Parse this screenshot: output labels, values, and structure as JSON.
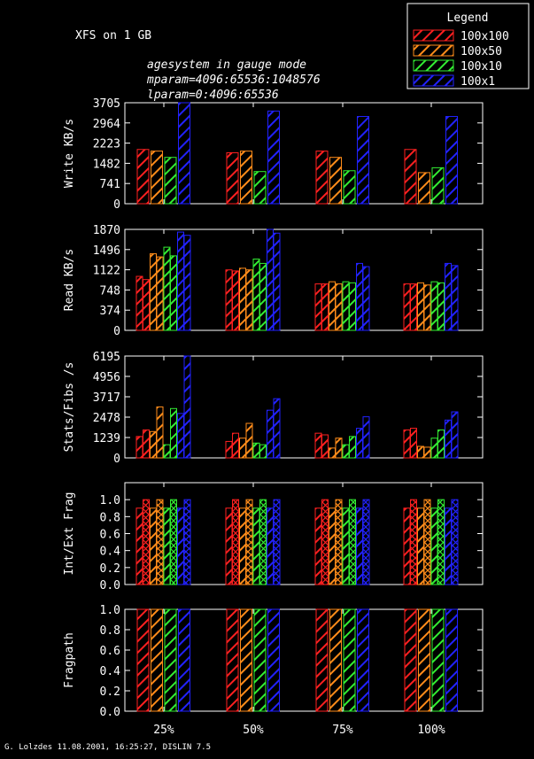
{
  "chart_data": {
    "type": "bar",
    "title": "XFS on 1 GB",
    "subtitle_lines": [
      "agesystem in gauge mode",
      "mparam=4096:65536:1048576",
      "lparam=0:4096:65536"
    ],
    "footer": "G. Lolzdes 11.08.2001, 16:25:27, DISLIN 7.5",
    "legend": {
      "title": "Legend",
      "entries": [
        "100x100",
        "100x50",
        "100x10",
        "100x1"
      ]
    },
    "series_colors": [
      "#ff2020",
      "#ff8c1a",
      "#33ee33",
      "#2222ff"
    ],
    "categories": [
      "25%",
      "50%",
      "75%",
      "100%"
    ],
    "panels": [
      {
        "ylabel": "Write KB/s",
        "ylim": [
          0,
          3705
        ],
        "yticks": [
          "0",
          "741",
          "1482",
          "2223",
          "2964",
          "3705"
        ],
        "bars_per_series": 1,
        "series": [
          {
            "name": "100x100",
            "values": [
              [
                1990
              ],
              [
                1870
              ],
              [
                1930
              ],
              [
                1990
              ]
            ]
          },
          {
            "name": "100x50",
            "values": [
              [
                1930
              ],
              [
                1930
              ],
              [
                1700
              ],
              [
                1140
              ]
            ]
          },
          {
            "name": "100x10",
            "values": [
              [
                1700
              ],
              [
                1180
              ],
              [
                1210
              ],
              [
                1320
              ]
            ]
          },
          {
            "name": "100x1",
            "values": [
              [
                3705
              ],
              [
                3400
              ],
              [
                3200
              ],
              [
                3200
              ]
            ]
          }
        ]
      },
      {
        "ylabel": "Read KB/s",
        "ylim": [
          0,
          1870
        ],
        "yticks": [
          "0",
          "374",
          "748",
          "1122",
          "1496",
          "1870"
        ],
        "bars_per_series": 2,
        "series": [
          {
            "name": "100x100",
            "values": [
              [
                1000,
                940
              ],
              [
                1120,
                1100
              ],
              [
                860,
                860
              ],
              [
                860,
                860
              ]
            ]
          },
          {
            "name": "100x50",
            "values": [
              [
                1420,
                1360
              ],
              [
                1150,
                1120
              ],
              [
                900,
                860
              ],
              [
                880,
                840
              ]
            ]
          },
          {
            "name": "100x10",
            "values": [
              [
                1540,
                1380
              ],
              [
                1320,
                1240
              ],
              [
                900,
                880
              ],
              [
                900,
                880
              ]
            ]
          },
          {
            "name": "100x1",
            "values": [
              [
                1820,
                1760
              ],
              [
                1870,
                1800
              ],
              [
                1240,
                1180
              ],
              [
                1240,
                1200
              ]
            ]
          }
        ]
      },
      {
        "ylabel": "Stats/Fibs /s",
        "ylim": [
          0,
          6195
        ],
        "yticks": [
          "0",
          "1239",
          "2478",
          "3717",
          "4956",
          "6195"
        ],
        "bars_per_series": 2,
        "series": [
          {
            "name": "100x100",
            "values": [
              [
                1300,
                1700
              ],
              [
                1000,
                1500
              ],
              [
                1500,
                1400
              ],
              [
                1700,
                1800
              ]
            ]
          },
          {
            "name": "100x50",
            "values": [
              [
                1600,
                3100
              ],
              [
                1200,
                2100
              ],
              [
                600,
                1200
              ],
              [
                700,
                650
              ]
            ]
          },
          {
            "name": "100x10",
            "values": [
              [
                800,
                3000
              ],
              [
                900,
                800
              ],
              [
                800,
                1300
              ],
              [
                1200,
                1700
              ]
            ]
          },
          {
            "name": "100x1",
            "values": [
              [
                2700,
                6195
              ],
              [
                2900,
                3600
              ],
              [
                1800,
                2500
              ],
              [
                2300,
                2800
              ]
            ]
          }
        ]
      },
      {
        "ylabel": "Int/Ext Frag",
        "ylim": [
          0,
          1.2
        ],
        "yticks": [
          "0.0",
          "0.2",
          "0.4",
          "0.6",
          "0.8",
          "1.0"
        ],
        "bars_per_series": 2,
        "series": [
          {
            "name": "100x100",
            "values": [
              [
                0.9,
                1.0
              ],
              [
                0.9,
                1.0
              ],
              [
                0.9,
                1.0
              ],
              [
                0.9,
                1.0
              ]
            ]
          },
          {
            "name": "100x50",
            "values": [
              [
                0.9,
                1.0
              ],
              [
                0.9,
                1.0
              ],
              [
                0.9,
                1.0
              ],
              [
                0.9,
                1.0
              ]
            ]
          },
          {
            "name": "100x10",
            "values": [
              [
                0.9,
                1.0
              ],
              [
                0.9,
                1.0
              ],
              [
                0.9,
                1.0
              ],
              [
                0.9,
                1.0
              ]
            ]
          },
          {
            "name": "100x1",
            "values": [
              [
                0.9,
                1.0
              ],
              [
                0.9,
                1.0
              ],
              [
                0.9,
                1.0
              ],
              [
                0.9,
                1.0
              ]
            ]
          }
        ]
      },
      {
        "ylabel": "Fragpath",
        "ylim": [
          0,
          1.0
        ],
        "yticks": [
          "0.0",
          "0.2",
          "0.4",
          "0.6",
          "0.8",
          "1.0"
        ],
        "bars_per_series": 1,
        "series": [
          {
            "name": "100x100",
            "values": [
              [
                1.0
              ],
              [
                1.0
              ],
              [
                1.0
              ],
              [
                1.0
              ]
            ]
          },
          {
            "name": "100x50",
            "values": [
              [
                1.0
              ],
              [
                1.0
              ],
              [
                1.0
              ],
              [
                1.0
              ]
            ]
          },
          {
            "name": "100x10",
            "values": [
              [
                1.0
              ],
              [
                1.0
              ],
              [
                1.0
              ],
              [
                1.0
              ]
            ]
          },
          {
            "name": "100x1",
            "values": [
              [
                1.0
              ],
              [
                1.0
              ],
              [
                1.0
              ],
              [
                1.0
              ]
            ]
          }
        ]
      }
    ]
  }
}
